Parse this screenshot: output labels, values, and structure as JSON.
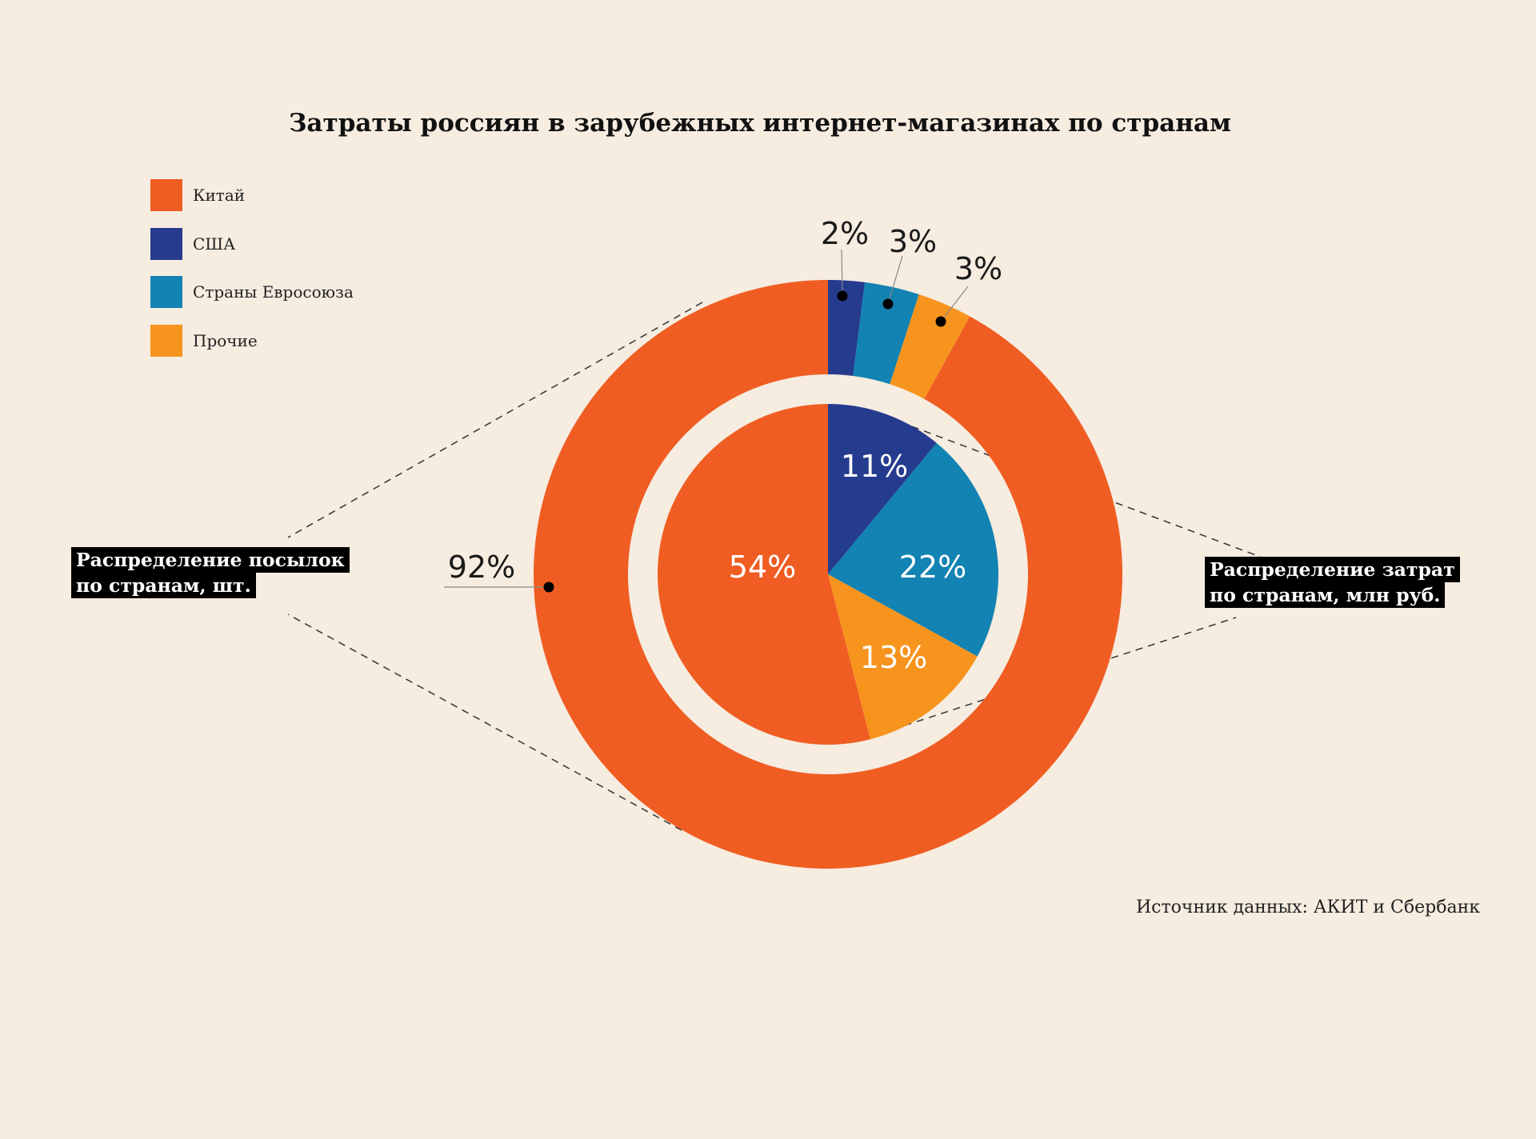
{
  "title": "Затраты россиян в зарубежных интернет-магазинах по странам",
  "colors": {
    "china": "#f05d23",
    "usa": "#253b8e",
    "eu": "#1283b2",
    "other": "#f7941d",
    "background": "#f6ece0"
  },
  "legend": [
    {
      "label": "Китай",
      "color": "#f05d23"
    },
    {
      "label": "США",
      "color": "#253b8e"
    },
    {
      "label": "Страны Евросоюза",
      "color": "#1283b2"
    },
    {
      "label": "Прочие",
      "color": "#f7941d"
    }
  ],
  "callouts": {
    "parcels_line1": "Распределение посылок",
    "parcels_line2": "по странам, шт.",
    "spending_line1": "Распределение затрат",
    "spending_line2": "по странам, млн руб."
  },
  "source": "Источник данных: АКИТ и Сбербанк",
  "chart_data": [
    {
      "type": "pie",
      "subtype": "donut",
      "name": "Распределение посылок по странам, шт.",
      "categories": [
        "США",
        "Страны Евросоюза",
        "Прочие",
        "Китай"
      ],
      "values": [
        2,
        3,
        3,
        92
      ],
      "labels": [
        "2%",
        "3%",
        "3%",
        "92%"
      ],
      "colors": [
        "#253b8e",
        "#1283b2",
        "#f7941d",
        "#f05d23"
      ]
    },
    {
      "type": "pie",
      "name": "Распределение затрат по странам, млн руб.",
      "categories": [
        "США",
        "Страны Евросоюза",
        "Прочие",
        "Китай"
      ],
      "values": [
        11,
        22,
        13,
        54
      ],
      "labels": [
        "11%",
        "22%",
        "13%",
        "54%"
      ],
      "colors": [
        "#253b8e",
        "#1283b2",
        "#f7941d",
        "#f05d23"
      ]
    }
  ]
}
